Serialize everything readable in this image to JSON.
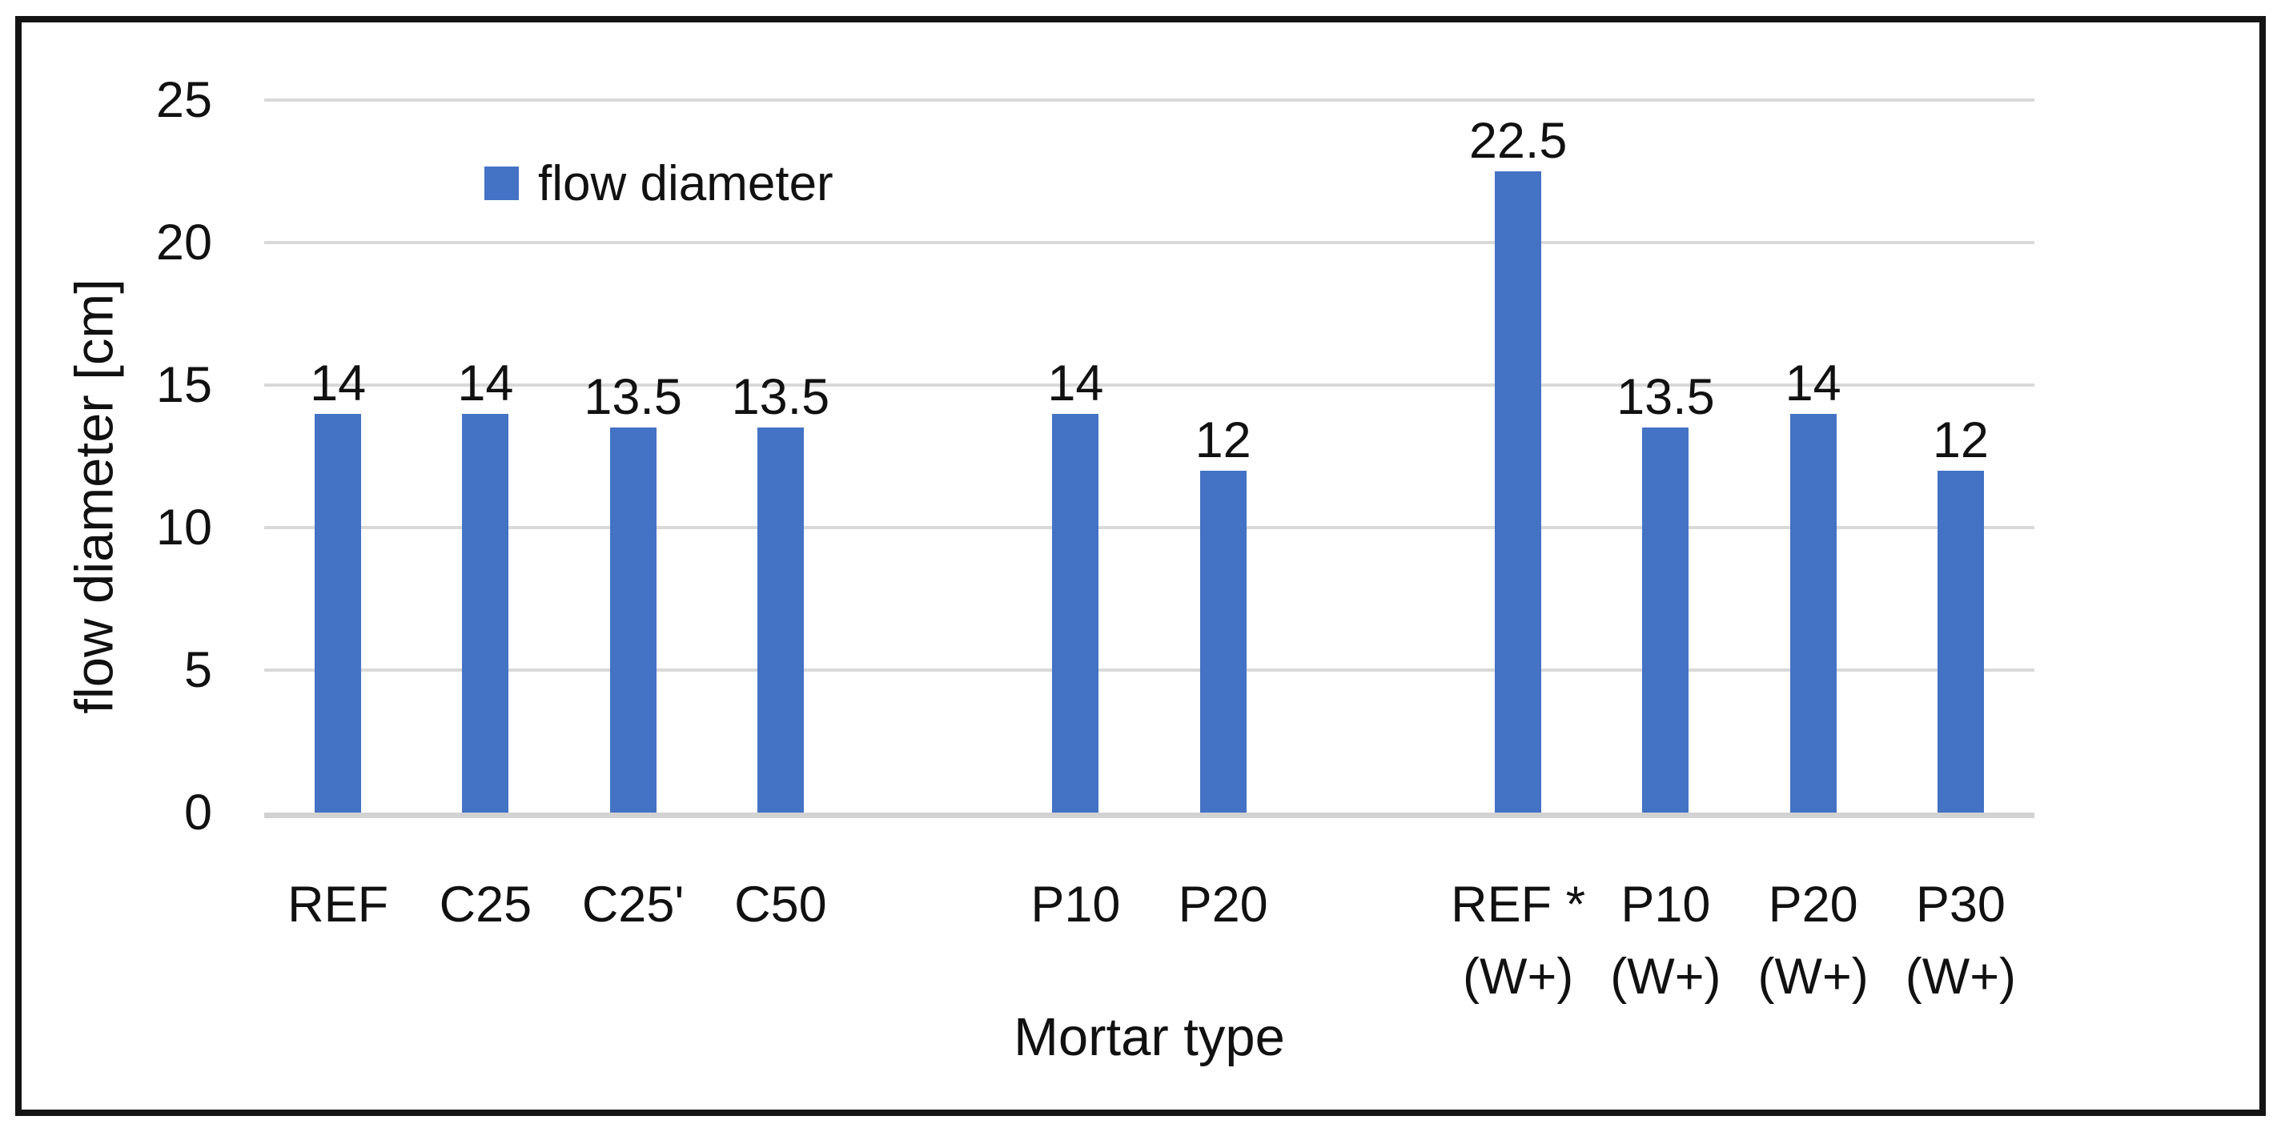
{
  "figure": {
    "background": "#ffffff",
    "border_color": "#141414"
  },
  "chart_data": {
    "type": "bar",
    "xlabel": "Mortar type",
    "ylabel": "flow diameter [cm]",
    "ylim": [
      0,
      25
    ],
    "yticks": [
      0,
      5,
      10,
      15,
      20,
      25
    ],
    "grid": true,
    "legend": [
      {
        "label": "flow diameter",
        "color": "#4472C4"
      }
    ],
    "legend_position": "top-left overlay",
    "n_slots": 12,
    "bars": [
      {
        "category": "REF",
        "label_lines": [
          "REF"
        ],
        "value": 14,
        "slot": 0
      },
      {
        "category": "C25",
        "label_lines": [
          "C25"
        ],
        "value": 14,
        "slot": 1
      },
      {
        "category": "C25'",
        "label_lines": [
          "C25'"
        ],
        "value": 13.5,
        "slot": 2
      },
      {
        "category": "C50",
        "label_lines": [
          "C50"
        ],
        "value": 13.5,
        "slot": 3
      },
      {
        "category": "P10",
        "label_lines": [
          "P10"
        ],
        "value": 14,
        "slot": 5
      },
      {
        "category": "P20",
        "label_lines": [
          "P20"
        ],
        "value": 12,
        "slot": 6
      },
      {
        "category": "REF * (W+)",
        "label_lines": [
          "REF *",
          "(W+)"
        ],
        "value": 22.5,
        "slot": 8
      },
      {
        "category": "P10 (W+)",
        "label_lines": [
          "P10",
          "(W+)"
        ],
        "value": 13.5,
        "slot": 9
      },
      {
        "category": "P20 (W+)",
        "label_lines": [
          "P20",
          "(W+)"
        ],
        "value": 14,
        "slot": 10
      },
      {
        "category": "P30 (W+)",
        "label_lines": [
          "P30",
          "(W+)"
        ],
        "value": 12,
        "slot": 11
      }
    ],
    "colors": {
      "bar": "#4472C4",
      "gridline": "#D9D9D9",
      "axis_line": "#D2D2D2",
      "text": "#111111",
      "frame": "#141414"
    }
  }
}
